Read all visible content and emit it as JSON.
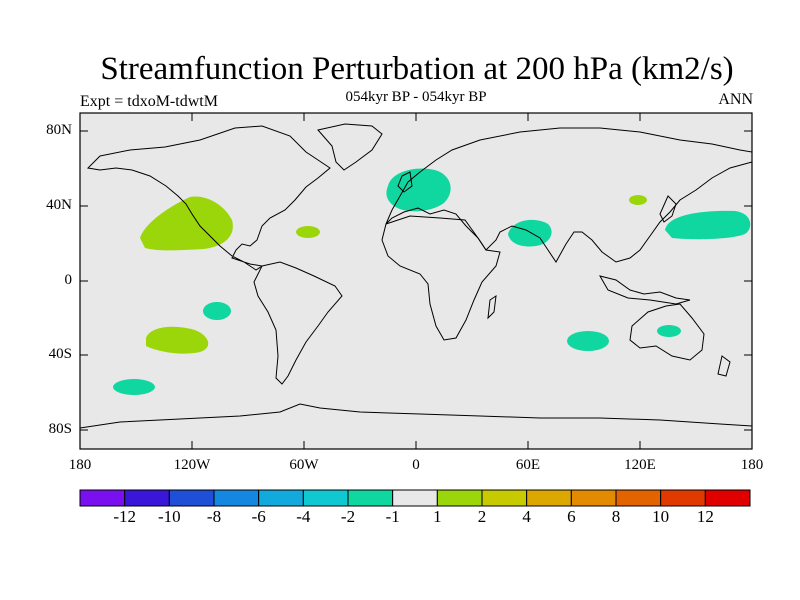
{
  "title": "Streamfunction Perturbation at 200 hPa (km2/s)",
  "subtitle": "054kyr BP - 054kyr BP",
  "left_label": "Expt = tdxoM-tdwtM",
  "right_label": "ANN",
  "lat_labels": [
    "80N",
    "40N",
    "0",
    "40S",
    "80S"
  ],
  "lon_labels": [
    "180",
    "120W",
    "60W",
    "0",
    "60E",
    "120E",
    "180"
  ],
  "colorbar": {
    "labels": [
      "-12",
      "-10",
      "-8",
      "-6",
      "-4",
      "-2",
      "-1",
      "1",
      "2",
      "4",
      "6",
      "8",
      "10",
      "12"
    ],
    "colors": [
      "#7a0ff0",
      "#3a16d8",
      "#1f4fd6",
      "#1487e0",
      "#12a9dc",
      "#10c8d2",
      "#10d6a0",
      "#e8e8e8",
      "#9bd60a",
      "#c8ca00",
      "#dca800",
      "#e28a00",
      "#e26400",
      "#e03a00",
      "#e00000"
    ]
  },
  "map": {
    "background": "#e8e8e8",
    "positive_color": "#9bd60a",
    "negative_color": "#10d6a0"
  }
}
